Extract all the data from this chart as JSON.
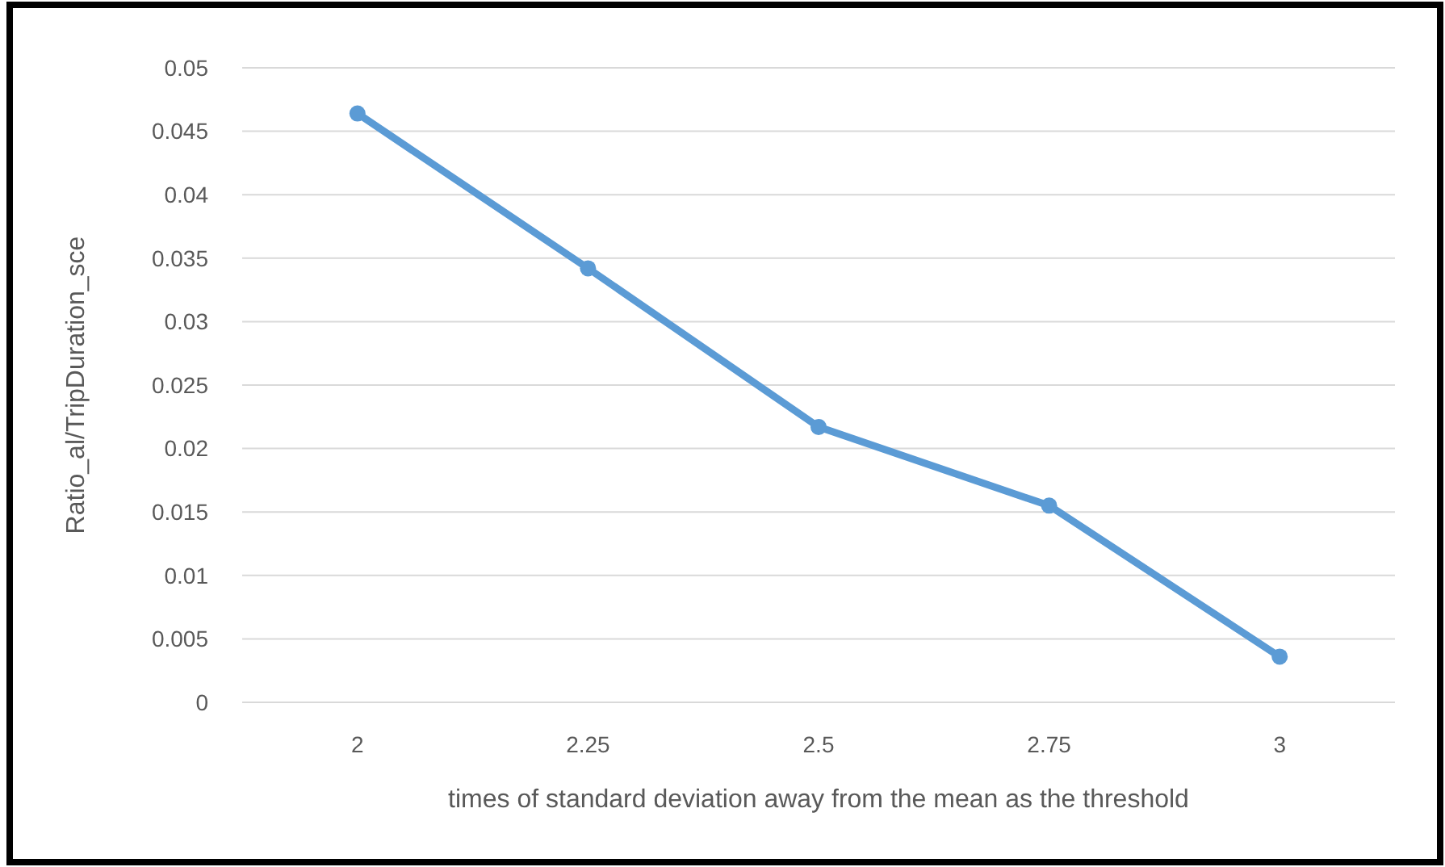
{
  "chart_data": {
    "type": "line",
    "xlabel": "times of standard deviation away from the mean as the threshold",
    "ylabel": "Ratio_al/TripDuration_sce",
    "categories": [
      "2",
      "2.25",
      "2.5",
      "2.75",
      "3"
    ],
    "series": [
      {
        "color": "#5b9bd5",
        "values": [
          0.0464,
          0.0342,
          0.0217,
          0.0155,
          0.0036
        ]
      }
    ],
    "ylim": [
      0,
      0.05
    ],
    "yticks": [
      0,
      0.005,
      0.01,
      0.015,
      0.02,
      0.025,
      0.03,
      0.035,
      0.04,
      0.045,
      0.05
    ],
    "grid": "y",
    "marker": "circle",
    "line_style": "solid"
  }
}
